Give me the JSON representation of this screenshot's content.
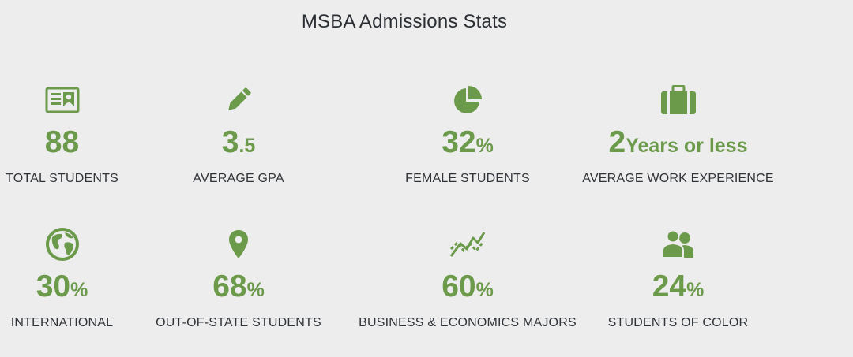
{
  "title": "MSBA Admissions Stats",
  "colors": {
    "accent": "#6c9a4b",
    "text": "#303438",
    "background": "#ededee"
  },
  "stats": [
    {
      "icon": "id-card-icon",
      "value": "88",
      "unit": "",
      "label": "TOTAL STUDENTS"
    },
    {
      "icon": "pencil-icon",
      "value": "3",
      "unit": ".5",
      "label": "AVERAGE GPA"
    },
    {
      "icon": "pie-chart-icon",
      "value": "32",
      "unit": "%",
      "label": "FEMALE STUDENTS"
    },
    {
      "icon": "briefcase-icon",
      "value": "2",
      "unit": "Years or less",
      "label": "AVERAGE WORK EXPERIENCE"
    },
    {
      "icon": "globe-icon",
      "value": "30",
      "unit": "%",
      "label": "INTERNATIONAL"
    },
    {
      "icon": "map-pin-icon",
      "value": "68",
      "unit": "%",
      "label": "OUT-OF-STATE STUDENTS"
    },
    {
      "icon": "trend-chart-icon",
      "value": "60",
      "unit": "%",
      "label": "BUSINESS & ECONOMICS MAJORS"
    },
    {
      "icon": "people-icon",
      "value": "24",
      "unit": "%",
      "label": "STUDENTS OF COLOR"
    }
  ]
}
